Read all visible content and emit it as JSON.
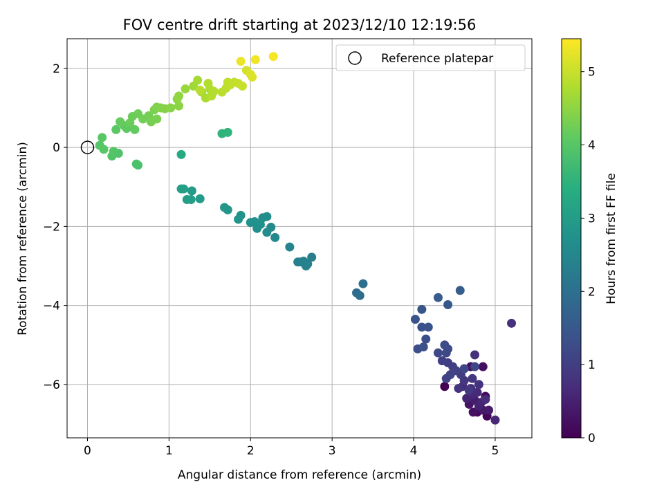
{
  "chart_data": {
    "type": "scatter",
    "title": "FOV centre drift starting at 2023/12/10 12:19:56",
    "xlabel": "Angular distance from reference (arcmin)",
    "ylabel": "Rotation from reference (arcmin)",
    "xlim": [
      -0.25,
      5.45
    ],
    "ylim": [
      -7.35,
      2.75
    ],
    "xticks": [
      0,
      1,
      2,
      3,
      4,
      5
    ],
    "xtick_labels": [
      "0",
      "1",
      "2",
      "3",
      "4",
      "5"
    ],
    "yticks": [
      2,
      0,
      -2,
      -4,
      -6
    ],
    "ytick_labels": [
      "2",
      "0",
      "−2",
      "−4",
      "−6"
    ],
    "grid": true,
    "legend": {
      "position": "top-right",
      "entries": [
        {
          "label": "Reference platepar",
          "marker": "open-circle",
          "color": "#000000"
        }
      ]
    },
    "reference_point": {
      "x": 0,
      "y": 0
    },
    "colorbar": {
      "label": "Hours from first FF file",
      "colormap": "viridis",
      "range": [
        0,
        5.45
      ],
      "ticks": [
        0,
        1,
        2,
        3,
        4,
        5
      ],
      "tick_labels": [
        "0",
        "1",
        "2",
        "3",
        "4",
        "5"
      ]
    },
    "points": [
      {
        "x": 4.38,
        "y": -6.05,
        "c": 0.0
      },
      {
        "x": 4.9,
        "y": -6.8,
        "c": 0.05
      },
      {
        "x": 4.78,
        "y": -6.7,
        "c": 0.1
      },
      {
        "x": 4.88,
        "y": -6.3,
        "c": 0.15
      },
      {
        "x": 4.7,
        "y": -5.55,
        "c": 0.2
      },
      {
        "x": 4.85,
        "y": -5.55,
        "c": 0.22
      },
      {
        "x": 4.73,
        "y": -6.7,
        "c": 0.25
      },
      {
        "x": 4.68,
        "y": -6.5,
        "c": 0.3
      },
      {
        "x": 4.85,
        "y": -6.65,
        "c": 0.35
      },
      {
        "x": 4.92,
        "y": -6.65,
        "c": 0.4
      },
      {
        "x": 4.75,
        "y": -6.4,
        "c": 0.45
      },
      {
        "x": 4.8,
        "y": -6.55,
        "c": 0.5
      },
      {
        "x": 4.65,
        "y": -6.35,
        "c": 0.52
      },
      {
        "x": 4.83,
        "y": -6.45,
        "c": 0.55
      },
      {
        "x": 5.0,
        "y": -6.9,
        "c": 0.6
      },
      {
        "x": 4.72,
        "y": -6.25,
        "c": 0.62
      },
      {
        "x": 4.78,
        "y": -6.2,
        "c": 0.65
      },
      {
        "x": 4.88,
        "y": -6.38,
        "c": 0.68
      },
      {
        "x": 4.6,
        "y": -6.05,
        "c": 0.7
      },
      {
        "x": 4.7,
        "y": -6.1,
        "c": 0.72
      },
      {
        "x": 4.75,
        "y": -5.25,
        "c": 0.75
      },
      {
        "x": 5.2,
        "y": -4.45,
        "c": 0.78
      },
      {
        "x": 4.8,
        "y": -6.0,
        "c": 0.8
      },
      {
        "x": 4.55,
        "y": -6.1,
        "c": 0.82
      },
      {
        "x": 4.62,
        "y": -5.9,
        "c": 0.85
      },
      {
        "x": 4.72,
        "y": -5.85,
        "c": 0.88
      },
      {
        "x": 4.68,
        "y": -6.15,
        "c": 0.9
      },
      {
        "x": 4.58,
        "y": -5.75,
        "c": 0.95
      },
      {
        "x": 4.42,
        "y": -5.45,
        "c": 0.98
      },
      {
        "x": 4.48,
        "y": -5.55,
        "c": 1.0
      },
      {
        "x": 4.35,
        "y": -5.4,
        "c": 1.02
      },
      {
        "x": 4.52,
        "y": -5.65,
        "c": 1.05
      },
      {
        "x": 4.4,
        "y": -5.85,
        "c": 1.08
      },
      {
        "x": 4.45,
        "y": -5.75,
        "c": 1.1
      },
      {
        "x": 4.75,
        "y": -5.55,
        "c": 1.12
      },
      {
        "x": 4.62,
        "y": -5.6,
        "c": 1.15
      },
      {
        "x": 4.4,
        "y": -5.2,
        "c": 1.18
      },
      {
        "x": 4.3,
        "y": -5.2,
        "c": 1.2
      },
      {
        "x": 4.42,
        "y": -5.1,
        "c": 1.22
      },
      {
        "x": 4.38,
        "y": -5.0,
        "c": 1.25
      },
      {
        "x": 4.15,
        "y": -4.85,
        "c": 1.28
      },
      {
        "x": 4.05,
        "y": -5.1,
        "c": 1.3
      },
      {
        "x": 4.12,
        "y": -5.05,
        "c": 1.33
      },
      {
        "x": 4.1,
        "y": -4.55,
        "c": 1.35
      },
      {
        "x": 4.18,
        "y": -4.55,
        "c": 1.38
      },
      {
        "x": 4.02,
        "y": -4.35,
        "c": 1.4
      },
      {
        "x": 4.1,
        "y": -4.1,
        "c": 1.45
      },
      {
        "x": 4.42,
        "y": -3.98,
        "c": 1.5
      },
      {
        "x": 4.3,
        "y": -3.8,
        "c": 1.55
      },
      {
        "x": 4.57,
        "y": -3.62,
        "c": 1.6
      },
      {
        "x": 3.3,
        "y": -3.68,
        "c": 1.9
      },
      {
        "x": 3.34,
        "y": -3.75,
        "c": 1.93
      },
      {
        "x": 3.38,
        "y": -3.45,
        "c": 1.95
      },
      {
        "x": 2.75,
        "y": -2.78,
        "c": 2.3
      },
      {
        "x": 2.62,
        "y": -2.9,
        "c": 2.32
      },
      {
        "x": 2.7,
        "y": -2.95,
        "c": 2.34
      },
      {
        "x": 2.58,
        "y": -2.9,
        "c": 2.36
      },
      {
        "x": 2.65,
        "y": -2.88,
        "c": 2.38
      },
      {
        "x": 2.68,
        "y": -3.0,
        "c": 2.4
      },
      {
        "x": 2.48,
        "y": -2.52,
        "c": 2.45
      },
      {
        "x": 2.3,
        "y": -2.28,
        "c": 2.55
      },
      {
        "x": 2.25,
        "y": -2.02,
        "c": 2.6
      },
      {
        "x": 2.2,
        "y": -2.15,
        "c": 2.62
      },
      {
        "x": 2.15,
        "y": -1.78,
        "c": 2.65
      },
      {
        "x": 2.2,
        "y": -1.75,
        "c": 2.67
      },
      {
        "x": 2.08,
        "y": -2.05,
        "c": 2.7
      },
      {
        "x": 2.12,
        "y": -1.95,
        "c": 2.72
      },
      {
        "x": 2.05,
        "y": -1.88,
        "c": 2.74
      },
      {
        "x": 2.0,
        "y": -1.9,
        "c": 2.76
      },
      {
        "x": 1.88,
        "y": -1.72,
        "c": 2.78
      },
      {
        "x": 1.85,
        "y": -1.82,
        "c": 2.8
      },
      {
        "x": 1.72,
        "y": -1.58,
        "c": 2.85
      },
      {
        "x": 1.68,
        "y": -1.52,
        "c": 2.87
      },
      {
        "x": 1.38,
        "y": -1.3,
        "c": 2.95
      },
      {
        "x": 1.28,
        "y": -1.1,
        "c": 2.97
      },
      {
        "x": 1.22,
        "y": -1.32,
        "c": 3.0
      },
      {
        "x": 1.27,
        "y": -1.32,
        "c": 3.02
      },
      {
        "x": 1.15,
        "y": -1.05,
        "c": 3.05
      },
      {
        "x": 1.18,
        "y": -1.05,
        "c": 3.07
      },
      {
        "x": 1.15,
        "y": -0.18,
        "c": 3.3
      },
      {
        "x": 1.65,
        "y": 0.35,
        "c": 3.5
      },
      {
        "x": 1.72,
        "y": 0.38,
        "c": 3.52
      },
      {
        "x": 0.62,
        "y": -0.45,
        "c": 3.85
      },
      {
        "x": 0.6,
        "y": -0.42,
        "c": 3.87
      },
      {
        "x": 0.32,
        "y": -0.15,
        "c": 3.9
      },
      {
        "x": 0.38,
        "y": -0.15,
        "c": 3.92
      },
      {
        "x": 0.3,
        "y": -0.22,
        "c": 3.94
      },
      {
        "x": 0.32,
        "y": -0.1,
        "c": 3.96
      },
      {
        "x": 0.15,
        "y": 0.05,
        "c": 3.98
      },
      {
        "x": 0.2,
        "y": -0.05,
        "c": 4.0
      },
      {
        "x": 0.18,
        "y": 0.25,
        "c": 4.02
      },
      {
        "x": 0.35,
        "y": 0.45,
        "c": 4.05
      },
      {
        "x": 0.48,
        "y": 0.48,
        "c": 4.08
      },
      {
        "x": 0.45,
        "y": 0.55,
        "c": 4.1
      },
      {
        "x": 0.58,
        "y": 0.45,
        "c": 4.12
      },
      {
        "x": 0.4,
        "y": 0.65,
        "c": 4.15
      },
      {
        "x": 0.52,
        "y": 0.62,
        "c": 4.18
      },
      {
        "x": 0.55,
        "y": 0.78,
        "c": 4.2
      },
      {
        "x": 0.62,
        "y": 0.85,
        "c": 4.22
      },
      {
        "x": 0.68,
        "y": 0.72,
        "c": 4.25
      },
      {
        "x": 0.75,
        "y": 0.8,
        "c": 4.28
      },
      {
        "x": 0.78,
        "y": 0.65,
        "c": 4.3
      },
      {
        "x": 0.85,
        "y": 0.72,
        "c": 4.32
      },
      {
        "x": 0.82,
        "y": 0.95,
        "c": 4.35
      },
      {
        "x": 0.85,
        "y": 1.02,
        "c": 4.38
      },
      {
        "x": 0.9,
        "y": 1.0,
        "c": 4.4
      },
      {
        "x": 0.95,
        "y": 0.98,
        "c": 4.42
      },
      {
        "x": 1.02,
        "y": 1.0,
        "c": 4.45
      },
      {
        "x": 1.12,
        "y": 1.05,
        "c": 4.48
      },
      {
        "x": 1.1,
        "y": 1.22,
        "c": 4.5
      },
      {
        "x": 1.12,
        "y": 1.3,
        "c": 4.52
      },
      {
        "x": 1.2,
        "y": 1.48,
        "c": 4.6
      },
      {
        "x": 1.3,
        "y": 1.55,
        "c": 4.65
      },
      {
        "x": 1.35,
        "y": 1.7,
        "c": 4.7
      },
      {
        "x": 1.4,
        "y": 1.4,
        "c": 4.72
      },
      {
        "x": 1.45,
        "y": 1.25,
        "c": 4.75
      },
      {
        "x": 1.5,
        "y": 1.48,
        "c": 4.78
      },
      {
        "x": 1.48,
        "y": 1.62,
        "c": 4.8
      },
      {
        "x": 1.52,
        "y": 1.3,
        "c": 4.82
      },
      {
        "x": 1.55,
        "y": 1.42,
        "c": 4.84
      },
      {
        "x": 1.38,
        "y": 1.45,
        "c": 4.86
      },
      {
        "x": 1.65,
        "y": 1.4,
        "c": 4.88
      },
      {
        "x": 1.7,
        "y": 1.5,
        "c": 4.9
      },
      {
        "x": 1.72,
        "y": 1.65,
        "c": 4.92
      },
      {
        "x": 1.75,
        "y": 1.58,
        "c": 4.94
      },
      {
        "x": 1.8,
        "y": 1.65,
        "c": 4.96
      },
      {
        "x": 1.85,
        "y": 1.62,
        "c": 4.98
      },
      {
        "x": 1.9,
        "y": 1.55,
        "c": 5.0
      },
      {
        "x": 1.95,
        "y": 1.95,
        "c": 5.1
      },
      {
        "x": 2.0,
        "y": 1.85,
        "c": 5.15
      },
      {
        "x": 2.02,
        "y": 1.78,
        "c": 5.17
      },
      {
        "x": 1.88,
        "y": 2.18,
        "c": 5.3
      },
      {
        "x": 2.06,
        "y": 2.22,
        "c": 5.35
      },
      {
        "x": 2.28,
        "y": 2.3,
        "c": 5.4
      }
    ]
  }
}
